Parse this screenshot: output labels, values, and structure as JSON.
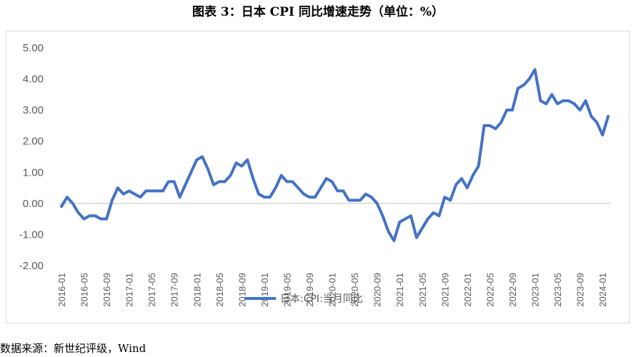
{
  "title": "图表 3：日本 CPI 同比增速走势（单位：%）",
  "source": "数据来源：新世纪评级，Wind",
  "chart_data": {
    "type": "line",
    "title": "图表 3：日本 CPI 同比增速走势（单位：%）",
    "xlabel": "",
    "ylabel": "",
    "ylim": [
      -2,
      5
    ],
    "yticks": [
      "5.00",
      "4.00",
      "3.00",
      "2.00",
      "1.00",
      "0.00",
      "-1.00",
      "-2.00"
    ],
    "grid": false,
    "legend": "bottom",
    "line_color": "#4472C4",
    "x_tick_labels": [
      "2016-01",
      "2016-05",
      "2016-09",
      "2017-01",
      "2017-05",
      "2017-09",
      "2018-01",
      "2018-05",
      "2018-09",
      "2019-01",
      "2019-05",
      "2019-09",
      "2020-01",
      "2020-05",
      "2020-09",
      "2021-01",
      "2021-05",
      "2021-09",
      "2022-01",
      "2022-05",
      "2022-09",
      "2023-01",
      "2023-05",
      "2023-09",
      "2024-01"
    ],
    "x_start": "2016-01",
    "series": [
      {
        "name": "日本:CPI:当月同比",
        "values": [
          -0.1,
          0.2,
          0.0,
          -0.3,
          -0.5,
          -0.4,
          -0.4,
          -0.5,
          -0.5,
          0.1,
          0.5,
          0.3,
          0.4,
          0.3,
          0.2,
          0.4,
          0.4,
          0.4,
          0.4,
          0.7,
          0.7,
          0.2,
          0.6,
          1.0,
          1.4,
          1.5,
          1.1,
          0.6,
          0.7,
          0.7,
          0.9,
          1.3,
          1.2,
          1.4,
          0.8,
          0.3,
          0.2,
          0.2,
          0.5,
          0.9,
          0.7,
          0.7,
          0.5,
          0.3,
          0.2,
          0.2,
          0.5,
          0.8,
          0.7,
          0.4,
          0.4,
          0.1,
          0.1,
          0.1,
          0.3,
          0.2,
          0.0,
          -0.4,
          -0.9,
          -1.2,
          -0.6,
          -0.5,
          -0.4,
          -1.1,
          -0.8,
          -0.5,
          -0.3,
          -0.4,
          0.2,
          0.1,
          0.6,
          0.8,
          0.5,
          0.9,
          1.2,
          2.5,
          2.5,
          2.4,
          2.6,
          3.0,
          3.0,
          3.7,
          3.8,
          4.0,
          4.3,
          3.3,
          3.2,
          3.5,
          3.2,
          3.3,
          3.3,
          3.2,
          3.0,
          3.3,
          2.8,
          2.6,
          2.2,
          2.8
        ]
      }
    ]
  }
}
